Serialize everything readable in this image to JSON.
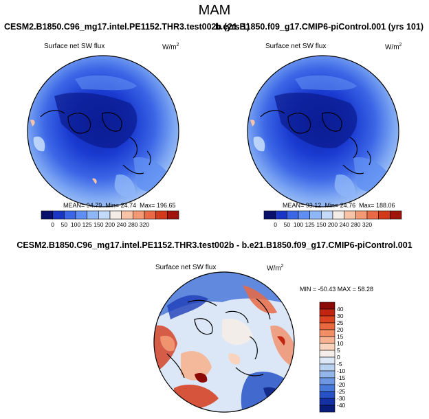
{
  "season": "MAM",
  "panels": [
    {
      "case": "CESM2.B1850.C96_mg17.intel.PE1152.THR3.test002b (yrs 1)",
      "variable": "Surface net SW flux",
      "units_base": "W/m",
      "units_exp": "2",
      "stats": {
        "mean_label": "MEAN=",
        "mean": "94.79",
        "min_label": "Min=",
        "min": "24.74",
        "max_label": "Max=",
        "max": "196.65"
      }
    },
    {
      "case": "b.e21.B1850.f09_g17.CMIP6-piControl.001 (yrs 101)",
      "variable": "Surface net SW flux",
      "units_base": "W/m",
      "units_exp": "2",
      "stats": {
        "mean_label": "MEAN=",
        "mean": "93.12",
        "min_label": "Min=",
        "min": "24.76",
        "max_label": "Max=",
        "max": "188.06"
      }
    }
  ],
  "colorbar": {
    "labels": [
      "0",
      "50",
      "100",
      "125",
      "150",
      "200",
      "240",
      "280",
      "320"
    ],
    "colors": [
      "#08106b",
      "#1a35c4",
      "#3b66e6",
      "#5f8ff2",
      "#8fb6f8",
      "#c3dafa",
      "#f4ece6",
      "#f8c4a8",
      "#f39a74",
      "#e96a44",
      "#d33a1a",
      "#a0140b"
    ]
  },
  "diff": {
    "title": "CESM2.B1850.C96_mg17.intel.PE1152.THR3.test002b - b.e21.B1850.f09_g17.CMIP6-piControl.001",
    "variable": "Surface net SW flux",
    "units_base": "W/m",
    "units_exp": "2",
    "minmax": "MIN = -50.43  MAX =  58.28",
    "scale_labels": [
      "40",
      "30",
      "25",
      "20",
      "15",
      "10",
      "5",
      "0",
      "-5",
      "-10",
      "-15",
      "-20",
      "-25",
      "-30",
      "-40"
    ],
    "scale_colors": [
      "#8c0a06",
      "#c1250f",
      "#dc4420",
      "#e9683e",
      "#f18e66",
      "#f6b291",
      "#f9d3bc",
      "#f5ede8",
      "#dce8f6",
      "#b9d2f0",
      "#93b6ea",
      "#6d97e3",
      "#4778da",
      "#2752c6",
      "#1431a4",
      "#0a1c7a"
    ]
  }
}
